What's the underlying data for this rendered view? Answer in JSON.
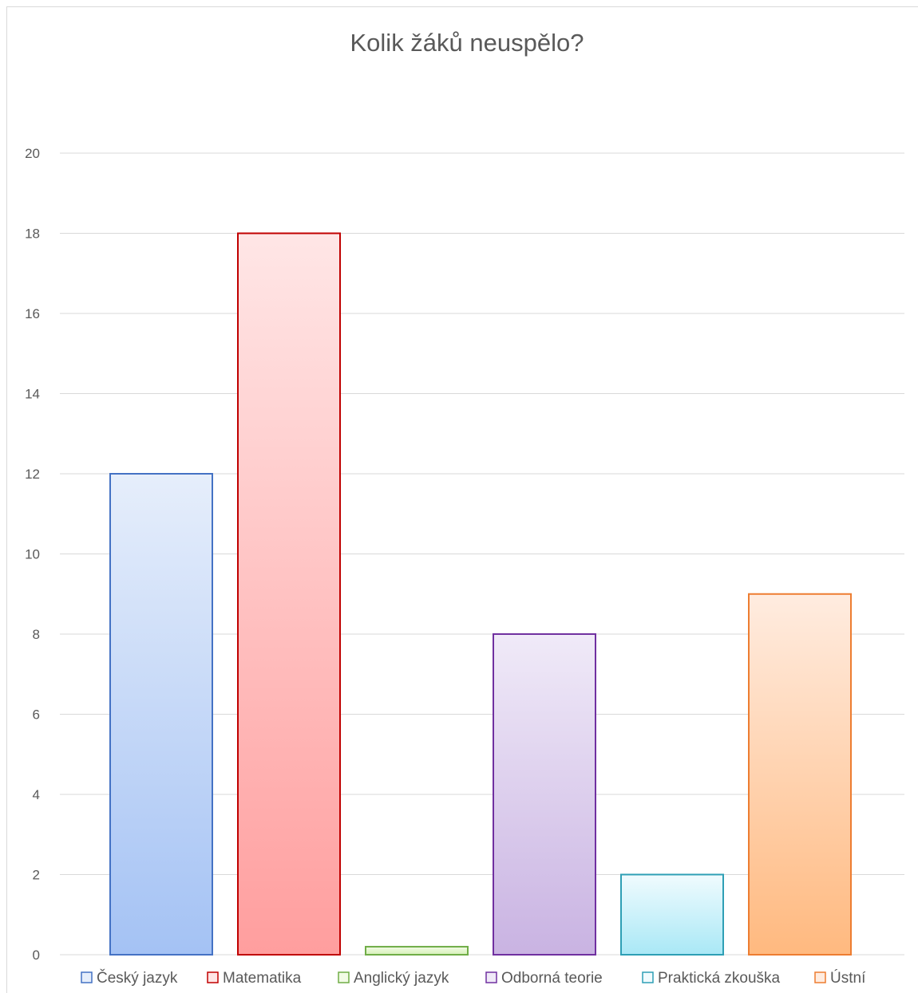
{
  "chart_data": {
    "type": "bar",
    "title": "Kolik žáků neuspělo?",
    "xlabel": "",
    "ylabel": "",
    "ylim": [
      0,
      20
    ],
    "yticks": [
      0,
      2,
      4,
      6,
      8,
      10,
      12,
      14,
      16,
      18,
      20
    ],
    "grid": true,
    "legend_position": "bottom",
    "series": [
      {
        "name": "Český jazyk",
        "value": 12,
        "color": "#4472c4",
        "fill_top": "#e6eefb",
        "fill_bottom": "#a4c2f4"
      },
      {
        "name": "Matematika",
        "value": 18,
        "color": "#c00000",
        "fill_top": "#ffe6e6",
        "fill_bottom": "#ff9e9e"
      },
      {
        "name": "Anglický jazyk",
        "value": 0.2,
        "color": "#70ad47",
        "fill_top": "#f2fbe6",
        "fill_bottom": "#d6f0b8"
      },
      {
        "name": "Odborná teorie",
        "value": 8,
        "color": "#7030a0",
        "fill_top": "#f0eaf8",
        "fill_bottom": "#c9b3e2"
      },
      {
        "name": "Praktická zkouška",
        "value": 2,
        "color": "#2e9fb5",
        "fill_top": "#f0fbfe",
        "fill_bottom": "#a9e8f6"
      },
      {
        "name": "Ústní",
        "value": 9,
        "color": "#ed7d31",
        "fill_top": "#ffece0",
        "fill_bottom": "#ffb97f"
      }
    ]
  }
}
